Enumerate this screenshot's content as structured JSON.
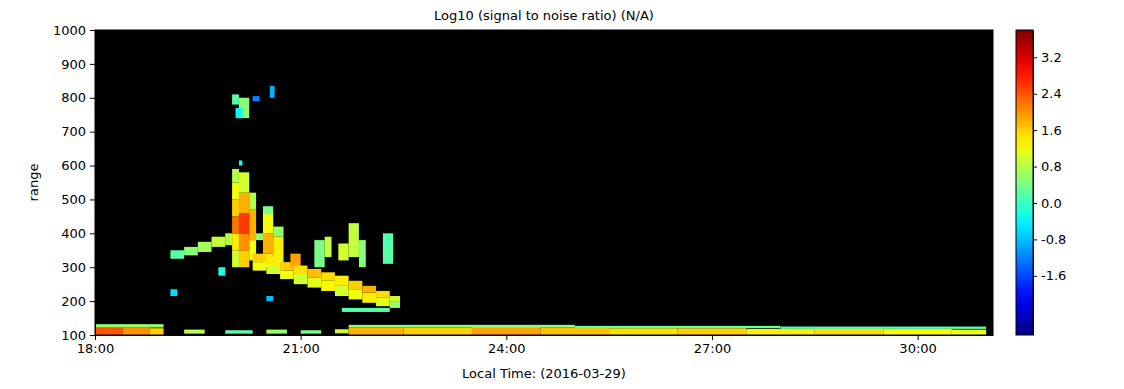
{
  "chart_data": {
    "type": "heatmap",
    "title": "Log10 (signal to noise ratio) (N/A)",
    "x_label": "Local Time: (2016-03-29)",
    "y_label": "range",
    "xlim": [
      18,
      31.1
    ],
    "xticks": [
      {
        "value": 18,
        "label": "18:00"
      },
      {
        "value": 21,
        "label": "21:00"
      },
      {
        "value": 24,
        "label": "24:00"
      },
      {
        "value": 27,
        "label": "27:00"
      },
      {
        "value": 30,
        "label": "30:00"
      }
    ],
    "ylim": [
      100,
      1000
    ],
    "yticks": [
      100,
      200,
      300,
      400,
      500,
      600,
      700,
      800,
      900,
      1000
    ],
    "colorbar": {
      "range": [
        -2.9,
        3.8
      ],
      "ticks": [
        -1.6,
        -0.8,
        {
          "value": 0,
          "label": "0.0"
        },
        0.8,
        1.6,
        2.4,
        3.2
      ]
    },
    "cells": [
      {
        "x0": 18.0,
        "x1": 18.4,
        "y0": 100,
        "y1": 122,
        "value": 2.4
      },
      {
        "x0": 18.4,
        "x1": 18.8,
        "y0": 100,
        "y1": 122,
        "value": 2.0
      },
      {
        "x0": 18.8,
        "x1": 19.0,
        "y0": 100,
        "y1": 120,
        "value": 1.6
      },
      {
        "x0": 18.0,
        "x1": 19.0,
        "y0": 122,
        "y1": 132,
        "value": 0.6
      },
      {
        "x0": 19.3,
        "x1": 19.6,
        "y0": 104,
        "y1": 116,
        "value": 0.8
      },
      {
        "x0": 19.9,
        "x1": 20.3,
        "y0": 104,
        "y1": 114,
        "value": 0.2
      },
      {
        "x0": 20.5,
        "x1": 20.8,
        "y0": 104,
        "y1": 116,
        "value": 0.6
      },
      {
        "x0": 21.0,
        "x1": 21.3,
        "y0": 104,
        "y1": 114,
        "value": 0.4
      },
      {
        "x0": 21.5,
        "x1": 21.7,
        "y0": 105,
        "y1": 117,
        "value": 1.0
      },
      {
        "x0": 21.7,
        "x1": 22.5,
        "y0": 100,
        "y1": 122,
        "value": 1.8
      },
      {
        "x0": 22.5,
        "x1": 23.5,
        "y0": 100,
        "y1": 122,
        "value": 1.6
      },
      {
        "x0": 23.5,
        "x1": 24.5,
        "y0": 100,
        "y1": 124,
        "value": 1.9
      },
      {
        "x0": 24.5,
        "x1": 25.5,
        "y0": 100,
        "y1": 122,
        "value": 1.7
      },
      {
        "x0": 25.5,
        "x1": 26.5,
        "y0": 100,
        "y1": 120,
        "value": 1.5
      },
      {
        "x0": 26.5,
        "x1": 27.5,
        "y0": 100,
        "y1": 120,
        "value": 1.6
      },
      {
        "x0": 27.5,
        "x1": 28.5,
        "y0": 100,
        "y1": 118,
        "value": 1.4
      },
      {
        "x0": 28.5,
        "x1": 29.5,
        "y0": 100,
        "y1": 120,
        "value": 1.5
      },
      {
        "x0": 29.5,
        "x1": 30.5,
        "y0": 100,
        "y1": 118,
        "value": 1.3
      },
      {
        "x0": 30.5,
        "x1": 31.0,
        "y0": 100,
        "y1": 116,
        "value": 1.2
      },
      {
        "x0": 21.7,
        "x1": 25.0,
        "y0": 122,
        "y1": 130,
        "value": 0.5
      },
      {
        "x0": 25.0,
        "x1": 28.0,
        "y0": 120,
        "y1": 127,
        "value": 0.3
      },
      {
        "x0": 28.0,
        "x1": 31.0,
        "y0": 118,
        "y1": 125,
        "value": 0.2
      },
      {
        "x0": 19.1,
        "x1": 19.3,
        "y0": 325,
        "y1": 350,
        "value": 0.2
      },
      {
        "x0": 19.3,
        "x1": 19.5,
        "y0": 335,
        "y1": 360,
        "value": 0.5
      },
      {
        "x0": 19.5,
        "x1": 19.7,
        "y0": 345,
        "y1": 375,
        "value": 0.7
      },
      {
        "x0": 19.7,
        "x1": 19.9,
        "y0": 360,
        "y1": 390,
        "value": 0.9
      },
      {
        "x0": 19.9,
        "x1": 20.0,
        "y0": 365,
        "y1": 400,
        "value": 0.8
      },
      {
        "x0": 20.3,
        "x1": 20.5,
        "y0": 380,
        "y1": 400,
        "value": 0.6
      },
      {
        "x0": 19.8,
        "x1": 19.9,
        "y0": 275,
        "y1": 300,
        "value": -0.2
      },
      {
        "x0": 20.0,
        "x1": 20.1,
        "y0": 300,
        "y1": 350,
        "value": 1.0
      },
      {
        "x0": 20.0,
        "x1": 20.1,
        "y0": 350,
        "y1": 400,
        "value": 1.4
      },
      {
        "x0": 20.0,
        "x1": 20.1,
        "y0": 400,
        "y1": 450,
        "value": 2.2
      },
      {
        "x0": 20.0,
        "x1": 20.1,
        "y0": 450,
        "y1": 500,
        "value": 1.6
      },
      {
        "x0": 20.0,
        "x1": 20.1,
        "y0": 500,
        "y1": 550,
        "value": 1.2
      },
      {
        "x0": 20.0,
        "x1": 20.1,
        "y0": 550,
        "y1": 590,
        "value": 0.8
      },
      {
        "x0": 20.1,
        "x1": 20.25,
        "y0": 300,
        "y1": 350,
        "value": 1.6
      },
      {
        "x0": 20.1,
        "x1": 20.25,
        "y0": 350,
        "y1": 400,
        "value": 2.0
      },
      {
        "x0": 20.1,
        "x1": 20.25,
        "y0": 400,
        "y1": 460,
        "value": 2.6
      },
      {
        "x0": 20.1,
        "x1": 20.25,
        "y0": 460,
        "y1": 520,
        "value": 1.8
      },
      {
        "x0": 20.1,
        "x1": 20.25,
        "y0": 520,
        "y1": 580,
        "value": 1.0
      },
      {
        "x0": 20.25,
        "x1": 20.35,
        "y0": 320,
        "y1": 380,
        "value": 1.2
      },
      {
        "x0": 20.25,
        "x1": 20.35,
        "y0": 380,
        "y1": 470,
        "value": 1.8
      },
      {
        "x0": 20.25,
        "x1": 20.35,
        "y0": 470,
        "y1": 520,
        "value": 0.8
      },
      {
        "x0": 20.45,
        "x1": 20.6,
        "y0": 300,
        "y1": 340,
        "value": 1.4
      },
      {
        "x0": 20.45,
        "x1": 20.6,
        "y0": 340,
        "y1": 400,
        "value": 1.8
      },
      {
        "x0": 20.45,
        "x1": 20.6,
        "y0": 400,
        "y1": 460,
        "value": 1.2
      },
      {
        "x0": 20.45,
        "x1": 20.6,
        "y0": 460,
        "y1": 480,
        "value": 0.4
      },
      {
        "x0": 20.6,
        "x1": 20.75,
        "y0": 290,
        "y1": 330,
        "value": 1.0
      },
      {
        "x0": 20.6,
        "x1": 20.75,
        "y0": 330,
        "y1": 390,
        "value": 1.4
      },
      {
        "x0": 20.6,
        "x1": 20.75,
        "y0": 390,
        "y1": 420,
        "value": 0.6
      },
      {
        "x0": 20.3,
        "x1": 20.5,
        "y0": 290,
        "y1": 315,
        "value": 1.2
      },
      {
        "x0": 20.3,
        "x1": 20.5,
        "y0": 315,
        "y1": 340,
        "value": 1.6
      },
      {
        "x0": 20.5,
        "x1": 20.7,
        "y0": 280,
        "y1": 305,
        "value": 1.0
      },
      {
        "x0": 20.5,
        "x1": 20.7,
        "y0": 305,
        "y1": 330,
        "value": 1.4
      },
      {
        "x0": 20.7,
        "x1": 20.9,
        "y0": 265,
        "y1": 290,
        "value": 1.2
      },
      {
        "x0": 20.7,
        "x1": 20.9,
        "y0": 290,
        "y1": 315,
        "value": 1.6
      },
      {
        "x0": 20.85,
        "x1": 21.0,
        "y0": 300,
        "y1": 340,
        "value": 1.9
      },
      {
        "x0": 20.9,
        "x1": 21.1,
        "y0": 250,
        "y1": 280,
        "value": 1.0
      },
      {
        "x0": 20.9,
        "x1": 21.1,
        "y0": 280,
        "y1": 305,
        "value": 1.5
      },
      {
        "x0": 21.1,
        "x1": 21.3,
        "y0": 240,
        "y1": 270,
        "value": 1.1
      },
      {
        "x0": 21.1,
        "x1": 21.3,
        "y0": 270,
        "y1": 295,
        "value": 1.7
      },
      {
        "x0": 21.3,
        "x1": 21.5,
        "y0": 230,
        "y1": 260,
        "value": 1.3
      },
      {
        "x0": 21.3,
        "x1": 21.5,
        "y0": 260,
        "y1": 285,
        "value": 1.5
      },
      {
        "x0": 21.5,
        "x1": 21.7,
        "y0": 215,
        "y1": 245,
        "value": 1.0
      },
      {
        "x0": 21.5,
        "x1": 21.7,
        "y0": 245,
        "y1": 275,
        "value": 1.4
      },
      {
        "x0": 21.7,
        "x1": 21.9,
        "y0": 205,
        "y1": 235,
        "value": 1.2
      },
      {
        "x0": 21.7,
        "x1": 21.9,
        "y0": 235,
        "y1": 260,
        "value": 1.6
      },
      {
        "x0": 21.9,
        "x1": 22.1,
        "y0": 195,
        "y1": 225,
        "value": 1.4
      },
      {
        "x0": 21.9,
        "x1": 22.1,
        "y0": 225,
        "y1": 245,
        "value": 1.8
      },
      {
        "x0": 22.1,
        "x1": 22.3,
        "y0": 185,
        "y1": 210,
        "value": 1.1
      },
      {
        "x0": 22.1,
        "x1": 22.3,
        "y0": 210,
        "y1": 230,
        "value": 1.5
      },
      {
        "x0": 22.3,
        "x1": 22.45,
        "y0": 180,
        "y1": 200,
        "value": 0.6
      },
      {
        "x0": 22.3,
        "x1": 22.45,
        "y0": 200,
        "y1": 215,
        "value": 1.0
      },
      {
        "x0": 21.6,
        "x1": 22.3,
        "y0": 168,
        "y1": 180,
        "value": 0.2
      },
      {
        "x0": 21.2,
        "x1": 21.35,
        "y0": 300,
        "y1": 380,
        "value": 0.4
      },
      {
        "x0": 21.35,
        "x1": 21.45,
        "y0": 330,
        "y1": 390,
        "value": 0.9
      },
      {
        "x0": 21.55,
        "x1": 21.7,
        "y0": 320,
        "y1": 370,
        "value": 1.0
      },
      {
        "x0": 21.7,
        "x1": 21.85,
        "y0": 330,
        "y1": 430,
        "value": 0.9
      },
      {
        "x0": 21.85,
        "x1": 21.95,
        "y0": 300,
        "y1": 380,
        "value": 0.5
      },
      {
        "x0": 22.2,
        "x1": 22.35,
        "y0": 310,
        "y1": 400,
        "value": 0.2
      },
      {
        "x0": 22.25,
        "x1": 22.3,
        "y0": 360,
        "y1": 395,
        "value": 0.0
      },
      {
        "x0": 20.0,
        "x1": 20.1,
        "y0": 780,
        "y1": 810,
        "value": 0.2
      },
      {
        "x0": 20.1,
        "x1": 20.25,
        "y0": 740,
        "y1": 800,
        "value": 0.5
      },
      {
        "x0": 20.05,
        "x1": 20.15,
        "y0": 740,
        "y1": 770,
        "value": -0.4
      },
      {
        "x0": 20.55,
        "x1": 20.62,
        "y0": 800,
        "y1": 835,
        "value": -0.9
      },
      {
        "x0": 20.3,
        "x1": 20.4,
        "y0": 790,
        "y1": 805,
        "value": -1.2
      },
      {
        "x0": 19.1,
        "x1": 19.2,
        "y0": 215,
        "y1": 235,
        "value": -0.6
      },
      {
        "x0": 20.5,
        "x1": 20.6,
        "y0": 200,
        "y1": 215,
        "value": -0.8
      },
      {
        "x0": 20.1,
        "x1": 20.15,
        "y0": 600,
        "y1": 615,
        "value": -0.3
      }
    ]
  }
}
